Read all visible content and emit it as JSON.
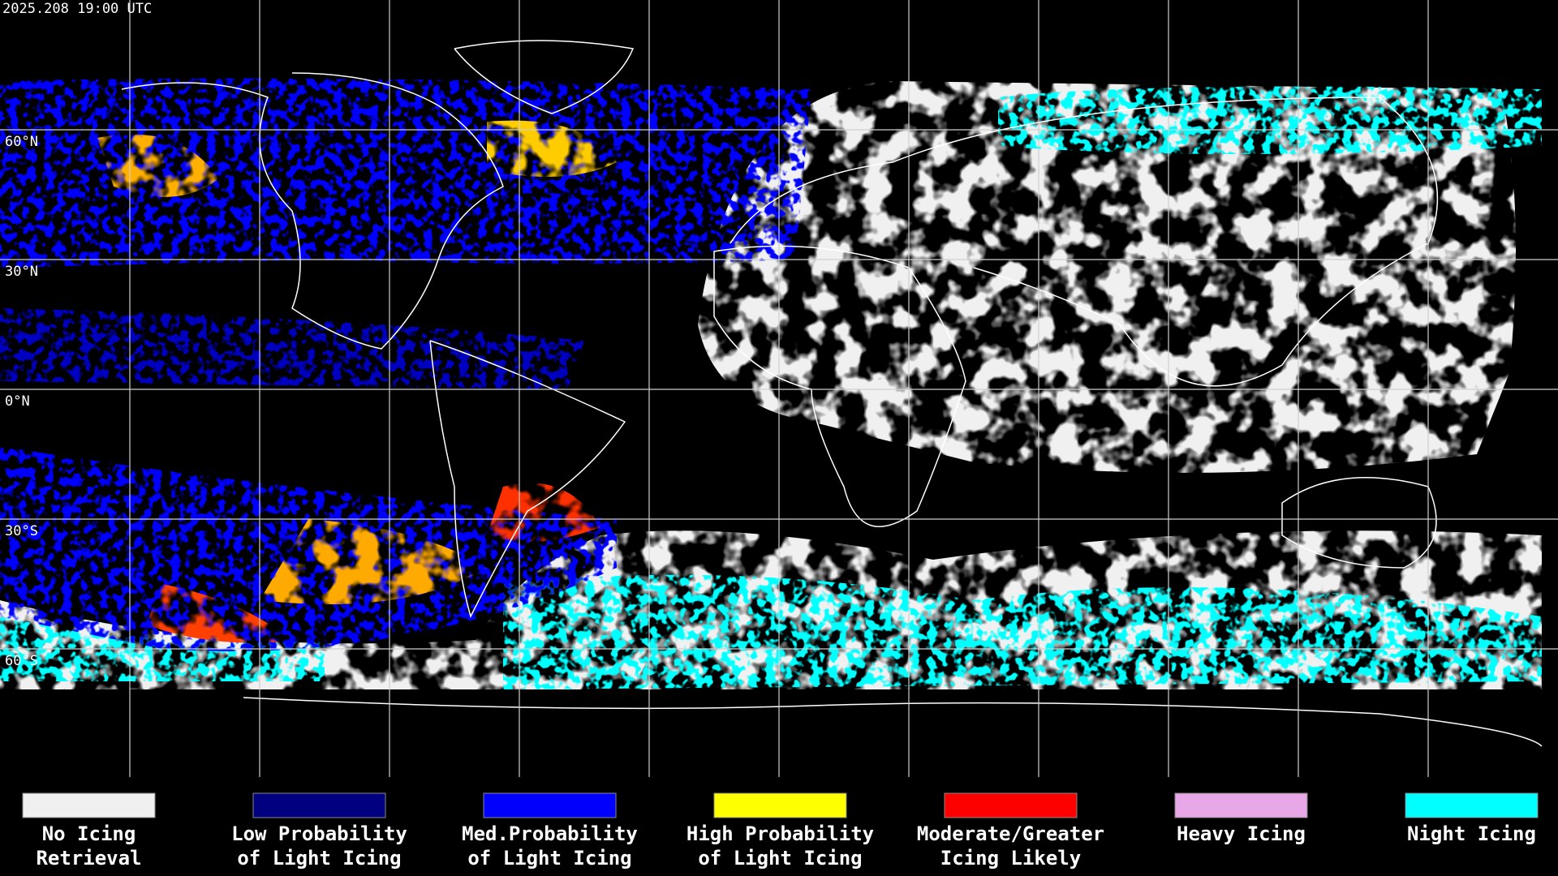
{
  "header": {
    "timestamp": "2025.208 19:00 UTC"
  },
  "latitude_labels": [
    "60°N",
    "30°N",
    "0°N",
    "30°S",
    "60°S"
  ],
  "legend": {
    "items": [
      {
        "line1": "No Icing",
        "line2": "Retrieval",
        "color": "#f0f0f0"
      },
      {
        "line1": "Low Probability",
        "line2": "of Light Icing",
        "color": "#000080"
      },
      {
        "line1": "Med.Probability",
        "line2": "of Light Icing",
        "color": "#0000ff"
      },
      {
        "line1": "High Probability",
        "line2": "of Light Icing",
        "color": "#ffff00"
      },
      {
        "line1": "Moderate/Greater",
        "line2": "Icing Likely",
        "color": "#ff0000"
      },
      {
        "line1": "Heavy Icing",
        "line2": "",
        "color": "#e8a8e8"
      },
      {
        "line1": "Night Icing",
        "line2": "",
        "color": "#00ffff"
      }
    ]
  }
}
